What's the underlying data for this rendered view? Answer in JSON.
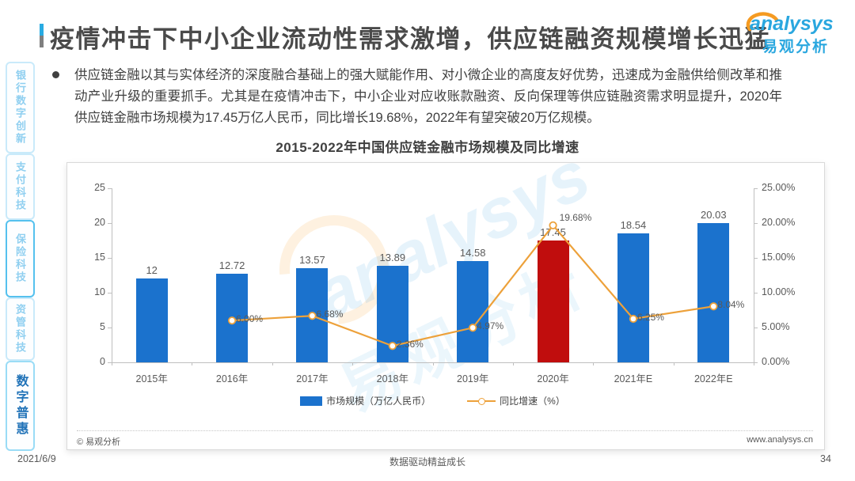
{
  "page": {
    "title": "疫情冲击下中小企业流动性需求激增，供应链融资规模增长迅猛",
    "footer": {
      "date": "2021/6/9",
      "slogan": "数据驱动精益成长",
      "page_number": "34"
    }
  },
  "logo": {
    "brand": "analysys",
    "brand_cn": "易观分析"
  },
  "sidebar": {
    "items": [
      {
        "label": "银行数字创新",
        "active": false
      },
      {
        "label": "支付科技",
        "active": false
      },
      {
        "label": "保险科技",
        "active": false
      },
      {
        "label": "资管科技",
        "active": false
      },
      {
        "label": "数字普惠",
        "active": true
      }
    ]
  },
  "bullet": {
    "text": "供应链金融以其与实体经济的深度融合基础上的强大赋能作用、对小微企业的高度友好优势，迅速成为金融供给侧改革和推动产业升级的重要抓手。尤其是在疫情冲击下，中小企业对应收账款融资、反向保理等供应链融资需求明显提升，2020年供应链金融市场规模为17.45万亿人民币，同比增长19.68%，2022年有望突破20万亿规模。"
  },
  "chart": {
    "source_left": "© 易观分析",
    "source_right": "www.analysys.cn",
    "watermark_latin": "analysys",
    "watermark_cn": "易观分析"
  },
  "chart_data": {
    "type": "bar+line",
    "title": "2015-2022年中国供应链金融市场规模及同比增速",
    "categories": [
      "2015年",
      "2016年",
      "2017年",
      "2018年",
      "2019年",
      "2020年",
      "2021年E",
      "2022年E"
    ],
    "series": [
      {
        "name": "市场规模（万亿人民币）",
        "type": "bar",
        "values": [
          12,
          12.72,
          13.57,
          13.89,
          14.58,
          17.45,
          18.54,
          20.03
        ],
        "labels": [
          "12",
          "12.72",
          "13.57",
          "13.89",
          "14.58",
          "17.45",
          "18.54",
          "20.03"
        ],
        "color": "#1b72cd",
        "highlight_index": 5,
        "highlight_color": "#c00d0d"
      },
      {
        "name": "同比增速（%）",
        "type": "line",
        "values": [
          null,
          6.0,
          6.68,
          2.36,
          4.97,
          19.68,
          6.25,
          8.04
        ],
        "labels": [
          "",
          "6.00%",
          "6.68%",
          "2.36%",
          "4.97%",
          "19.68%",
          "6.25%",
          "8.04%"
        ],
        "color": "#eda13a"
      }
    ],
    "left_axis": {
      "min": 0,
      "max": 25,
      "ticks": [
        25,
        20,
        15,
        10,
        5,
        0
      ]
    },
    "right_axis": {
      "min": 0,
      "max": 25,
      "ticks": [
        "25.00%",
        "20.00%",
        "15.00%",
        "10.00%",
        "5.00%",
        "0.00%"
      ]
    },
    "grid": false,
    "legend_position": "bottom"
  }
}
